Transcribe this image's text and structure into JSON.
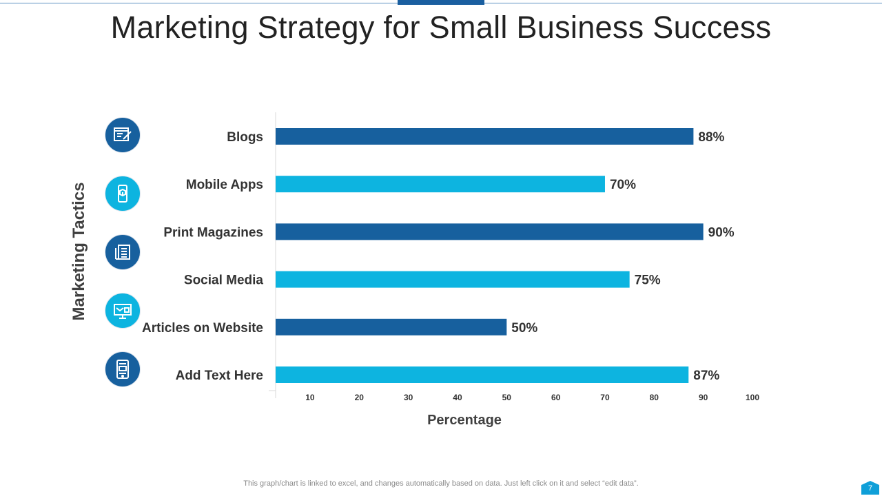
{
  "slide": {
    "title": "Marketing Strategy for Small Business Success",
    "footer_note": "This graph/chart is linked to excel,  and changes automatically based on data. Just left click on it and select “edit data”.",
    "page_number": "7"
  },
  "icons": [
    {
      "name": "blog-editor-icon",
      "color": "#17609e"
    },
    {
      "name": "mobile-app-icon",
      "color": "#0db4e0"
    },
    {
      "name": "newspaper-icon",
      "color": "#17609e"
    },
    {
      "name": "social-media-devices-icon",
      "color": "#0db4e0"
    },
    {
      "name": "website-layout-icon",
      "color": "#17609e"
    }
  ],
  "chart_data": {
    "type": "bar",
    "orientation": "horizontal",
    "categories": [
      "Blogs",
      "Mobile Apps",
      "Print Magazines",
      "Social Media",
      "Articles on Website",
      "Add Text Here"
    ],
    "values": [
      88,
      70,
      90,
      75,
      50,
      87
    ],
    "value_labels": [
      "88%",
      "70%",
      "90%",
      "75%",
      "50%",
      "87%"
    ],
    "bar_colors": [
      "#17609e",
      "#0db4e0",
      "#17609e",
      "#0db4e0",
      "#17609e",
      "#0db4e0"
    ],
    "xlabel": "Percentage",
    "ylabel": "Marketing Tactics",
    "xticks": [
      "10",
      "20",
      "30",
      "40",
      "50",
      "60",
      "70",
      "80",
      "90",
      "100"
    ],
    "xlim": [
      3,
      100
    ],
    "grid": false,
    "legend": "none"
  }
}
